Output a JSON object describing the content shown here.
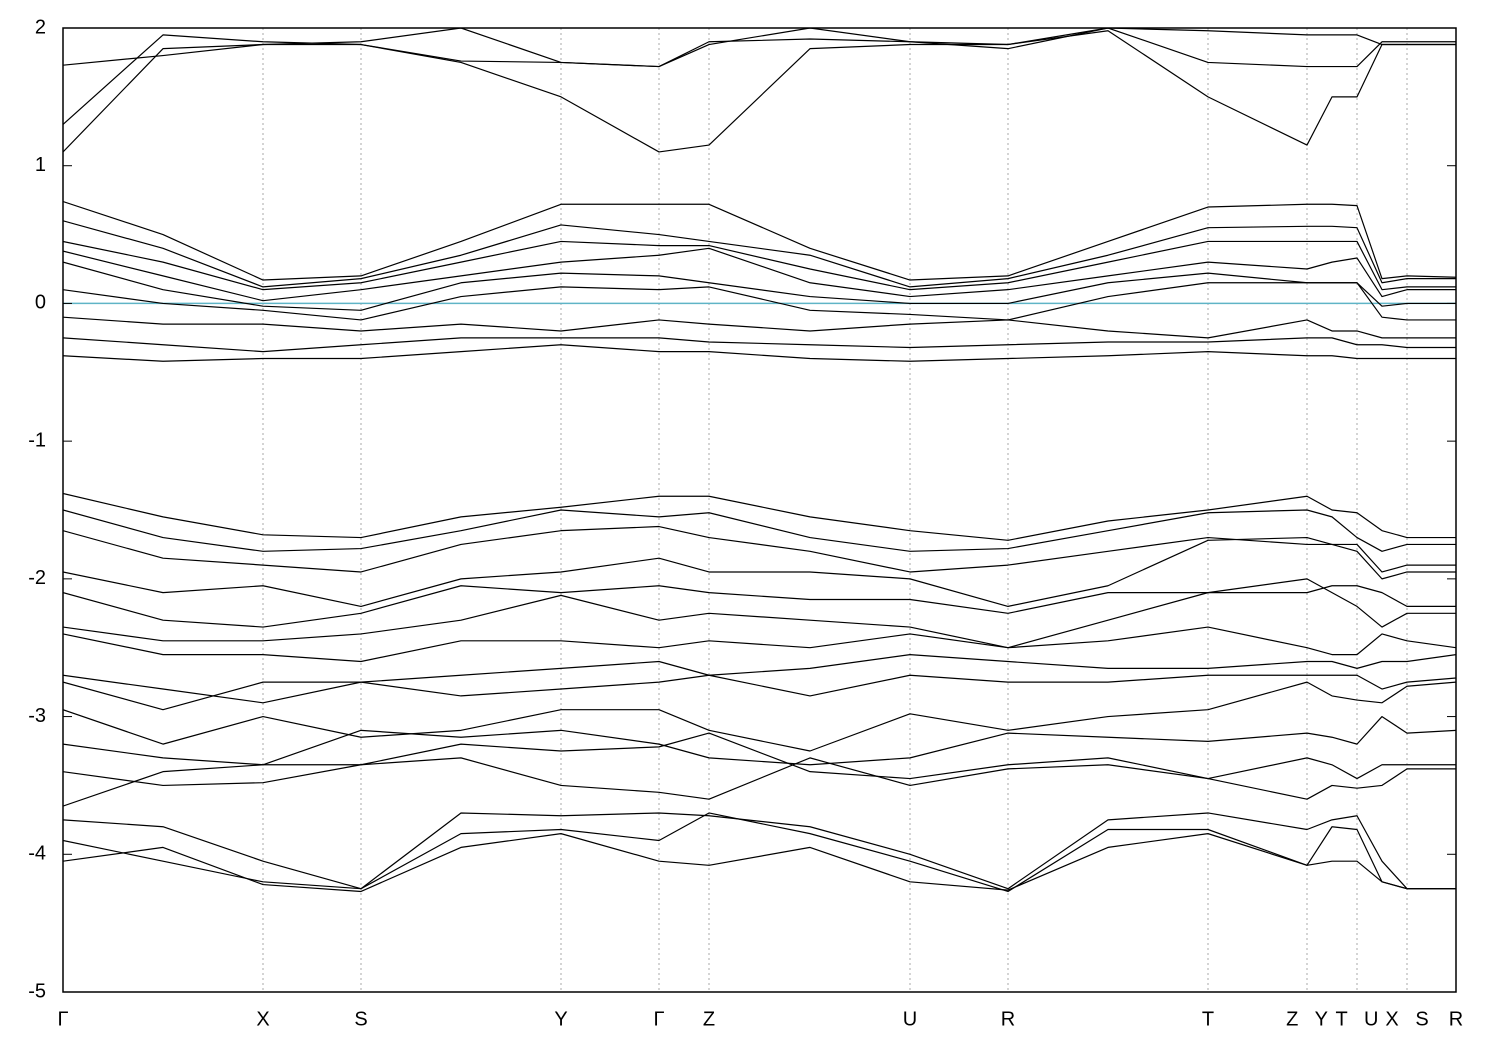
{
  "chart_data": {
    "type": "line",
    "x": [
      0,
      1.0,
      2.0,
      2.98,
      3.98,
      4.98,
      5.96,
      6.46,
      7.47,
      8.47,
      9.45,
      10.45,
      11.45,
      12.44,
      12.69,
      12.94,
      13.19,
      13.44,
      13.93
    ],
    "xlim": [
      0,
      13.93
    ],
    "xticks": [
      {
        "value": 0,
        "label": "Γ"
      },
      {
        "value": 2.0,
        "label": "X"
      },
      {
        "value": 2.98,
        "label": "S"
      },
      {
        "value": 4.98,
        "label": "Y"
      },
      {
        "value": 5.96,
        "label": "Γ"
      },
      {
        "value": 6.46,
        "label": "Z"
      },
      {
        "value": 8.47,
        "label": "U"
      },
      {
        "value": 9.45,
        "label": "R"
      },
      {
        "value": 11.45,
        "label": "T"
      },
      {
        "value": 12.44,
        "label": "Z   Y"
      },
      {
        "value": 12.94,
        "label": "T   U"
      },
      {
        "value": 13.44,
        "label": "X   S"
      },
      {
        "value": 13.93,
        "label": "R"
      }
    ],
    "ylim": [
      -5,
      2
    ],
    "yticks": [
      -5,
      -4,
      -3,
      -2,
      -1,
      0,
      1,
      2
    ],
    "grid": "x",
    "reference_line": {
      "value": 0,
      "color": "#5fb4c6"
    },
    "series": [
      {
        "color": "#000000",
        "values": [
          1.1,
          1.85,
          1.88,
          1.88,
          1.75,
          1.5,
          1.1,
          1.15,
          1.85,
          1.88,
          1.88,
          1.98,
          1.5,
          1.15,
          1.5,
          1.5,
          1.88,
          1.88,
          1.88
        ]
      },
      {
        "color": "#000000",
        "values": [
          1.3,
          1.95,
          1.9,
          1.88,
          1.76,
          1.75,
          1.72,
          1.88,
          2.0,
          1.9,
          1.85,
          2.0,
          1.75,
          1.72,
          1.72,
          1.72,
          1.9,
          1.9,
          1.9
        ]
      },
      {
        "color": "#000000",
        "values": [
          1.73,
          1.8,
          1.88,
          1.9,
          2.0,
          1.75,
          1.72,
          1.9,
          1.92,
          1.9,
          1.88,
          2.0,
          1.98,
          1.95,
          1.95,
          1.95,
          1.88,
          1.88,
          1.88
        ]
      },
      {
        "color": "#000000",
        "values": [
          0.74,
          0.5,
          0.17,
          0.2,
          0.45,
          0.72,
          0.72,
          0.72,
          0.4,
          0.17,
          0.2,
          0.45,
          0.7,
          0.72,
          0.72,
          0.71,
          0.18,
          0.2,
          0.19
        ]
      },
      {
        "color": "#000000",
        "values": [
          0.6,
          0.4,
          0.12,
          0.18,
          0.35,
          0.57,
          0.5,
          0.45,
          0.35,
          0.12,
          0.18,
          0.35,
          0.55,
          0.56,
          0.56,
          0.55,
          0.15,
          0.18,
          0.18
        ]
      },
      {
        "color": "#000000",
        "values": [
          0.45,
          0.3,
          0.1,
          0.15,
          0.3,
          0.45,
          0.42,
          0.42,
          0.25,
          0.1,
          0.15,
          0.3,
          0.45,
          0.45,
          0.45,
          0.45,
          0.1,
          0.12,
          0.12
        ]
      },
      {
        "color": "#000000",
        "values": [
          0.38,
          0.2,
          0.02,
          0.1,
          0.2,
          0.3,
          0.35,
          0.4,
          0.15,
          0.05,
          0.1,
          0.2,
          0.3,
          0.25,
          0.3,
          0.33,
          0.05,
          0.1,
          0.1
        ]
      },
      {
        "color": "#000000",
        "values": [
          0.3,
          0.1,
          -0.02,
          -0.05,
          0.15,
          0.22,
          0.2,
          0.15,
          0.05,
          0.0,
          0.0,
          0.15,
          0.22,
          0.15,
          0.15,
          0.15,
          -0.02,
          0.0,
          0.0
        ]
      },
      {
        "color": "#000000",
        "values": [
          0.1,
          0.0,
          -0.05,
          -0.12,
          0.05,
          0.12,
          0.1,
          0.12,
          -0.05,
          -0.08,
          -0.12,
          0.05,
          0.15,
          0.15,
          0.15,
          0.15,
          -0.1,
          -0.12,
          -0.12
        ]
      },
      {
        "color": "#000000",
        "values": [
          -0.1,
          -0.15,
          -0.15,
          -0.2,
          -0.15,
          -0.2,
          -0.12,
          -0.15,
          -0.2,
          -0.15,
          -0.12,
          -0.2,
          -0.25,
          -0.12,
          -0.2,
          -0.2,
          -0.25,
          -0.25,
          -0.25
        ]
      },
      {
        "color": "#000000",
        "values": [
          -0.25,
          -0.3,
          -0.35,
          -0.3,
          -0.25,
          -0.25,
          -0.25,
          -0.28,
          -0.3,
          -0.32,
          -0.3,
          -0.28,
          -0.28,
          -0.25,
          -0.25,
          -0.3,
          -0.3,
          -0.32,
          -0.32
        ]
      },
      {
        "color": "#000000",
        "values": [
          -0.38,
          -0.42,
          -0.4,
          -0.4,
          -0.35,
          -0.3,
          -0.35,
          -0.35,
          -0.4,
          -0.42,
          -0.4,
          -0.38,
          -0.35,
          -0.38,
          -0.38,
          -0.4,
          -0.4,
          -0.4,
          -0.4
        ]
      },
      {
        "color": "#000000",
        "values": [
          -1.38,
          -1.55,
          -1.68,
          -1.7,
          -1.55,
          -1.48,
          -1.4,
          -1.4,
          -1.55,
          -1.65,
          -1.72,
          -1.58,
          -1.5,
          -1.4,
          -1.5,
          -1.52,
          -1.65,
          -1.7,
          -1.7
        ]
      },
      {
        "color": "#000000",
        "values": [
          -1.5,
          -1.7,
          -1.8,
          -1.78,
          -1.65,
          -1.5,
          -1.55,
          -1.52,
          -1.7,
          -1.8,
          -1.78,
          -1.65,
          -1.52,
          -1.5,
          -1.55,
          -1.7,
          -1.8,
          -1.75,
          -1.75
        ]
      },
      {
        "color": "#000000",
        "values": [
          -1.65,
          -1.85,
          -1.9,
          -1.95,
          -1.75,
          -1.65,
          -1.62,
          -1.7,
          -1.8,
          -1.95,
          -1.9,
          -1.8,
          -1.7,
          -1.75,
          -1.75,
          -1.75,
          -1.95,
          -1.9,
          -1.9
        ]
      },
      {
        "color": "#000000",
        "values": [
          -1.95,
          -2.1,
          -2.05,
          -2.2,
          -2.0,
          -1.95,
          -1.85,
          -1.95,
          -1.95,
          -2.0,
          -2.2,
          -2.05,
          -1.72,
          -1.7,
          -1.75,
          -1.8,
          -2.0,
          -1.95,
          -1.95
        ]
      },
      {
        "color": "#000000",
        "values": [
          -2.1,
          -2.3,
          -2.35,
          -2.25,
          -2.05,
          -2.1,
          -2.05,
          -2.1,
          -2.15,
          -2.15,
          -2.25,
          -2.1,
          -2.1,
          -2.1,
          -2.05,
          -2.05,
          -2.1,
          -2.2,
          -2.2
        ]
      },
      {
        "color": "#000000",
        "values": [
          -2.35,
          -2.45,
          -2.45,
          -2.4,
          -2.3,
          -2.12,
          -2.3,
          -2.25,
          -2.3,
          -2.35,
          -2.5,
          -2.3,
          -2.1,
          -2.0,
          -2.1,
          -2.2,
          -2.35,
          -2.25,
          -2.25
        ]
      },
      {
        "color": "#000000",
        "values": [
          -2.4,
          -2.55,
          -2.55,
          -2.6,
          -2.45,
          -2.45,
          -2.5,
          -2.45,
          -2.5,
          -2.4,
          -2.5,
          -2.45,
          -2.35,
          -2.5,
          -2.55,
          -2.55,
          -2.4,
          -2.45,
          -2.5
        ]
      },
      {
        "color": "#000000",
        "values": [
          -2.7,
          -2.8,
          -2.9,
          -2.75,
          -2.7,
          -2.65,
          -2.6,
          -2.7,
          -2.65,
          -2.55,
          -2.6,
          -2.65,
          -2.65,
          -2.6,
          -2.6,
          -2.65,
          -2.6,
          -2.6,
          -2.55
        ]
      },
      {
        "color": "#000000",
        "values": [
          -2.75,
          -2.95,
          -2.75,
          -2.75,
          -2.85,
          -2.8,
          -2.75,
          -2.7,
          -2.85,
          -2.7,
          -2.75,
          -2.75,
          -2.7,
          -2.7,
          -2.7,
          -2.7,
          -2.8,
          -2.75,
          -2.72
        ]
      },
      {
        "color": "#000000",
        "values": [
          -2.95,
          -3.2,
          -3.0,
          -3.15,
          -3.1,
          -2.95,
          -2.95,
          -3.1,
          -3.25,
          -2.98,
          -3.1,
          -3.0,
          -2.95,
          -2.75,
          -2.85,
          -2.88,
          -2.9,
          -2.78,
          -2.75
        ]
      },
      {
        "color": "#000000",
        "values": [
          -3.2,
          -3.3,
          -3.35,
          -3.1,
          -3.15,
          -3.1,
          -3.2,
          -3.3,
          -3.35,
          -3.3,
          -3.12,
          -3.15,
          -3.18,
          -3.12,
          -3.15,
          -3.2,
          -3.0,
          -3.12,
          -3.1
        ]
      },
      {
        "color": "#000000",
        "values": [
          -3.4,
          -3.5,
          -3.48,
          -3.35,
          -3.2,
          -3.25,
          -3.22,
          -3.12,
          -3.4,
          -3.45,
          -3.35,
          -3.3,
          -3.45,
          -3.3,
          -3.35,
          -3.45,
          -3.35,
          -3.35,
          -3.35
        ]
      },
      {
        "color": "#000000",
        "values": [
          -3.65,
          -3.4,
          -3.35,
          -3.35,
          -3.3,
          -3.5,
          -3.55,
          -3.6,
          -3.3,
          -3.5,
          -3.38,
          -3.35,
          -3.45,
          -3.6,
          -3.5,
          -3.52,
          -3.5,
          -3.38,
          -3.38
        ]
      },
      {
        "color": "#000000",
        "values": [
          -3.75,
          -3.8,
          -4.05,
          -4.25,
          -3.7,
          -3.72,
          -3.7,
          -3.72,
          -3.8,
          -4.0,
          -4.25,
          -3.75,
          -3.7,
          -3.82,
          -3.75,
          -3.72,
          -4.05,
          -4.25,
          -4.25
        ]
      },
      {
        "color": "#000000",
        "values": [
          -3.9,
          -4.05,
          -4.2,
          -4.25,
          -3.85,
          -3.82,
          -3.9,
          -3.7,
          -3.85,
          -4.05,
          -4.27,
          -3.82,
          -3.82,
          -4.08,
          -3.8,
          -3.82,
          -4.2,
          -4.25,
          -4.25
        ]
      },
      {
        "color": "#000000",
        "values": [
          -4.05,
          -3.95,
          -4.22,
          -4.27,
          -3.95,
          -3.85,
          -4.05,
          -4.08,
          -3.95,
          -4.2,
          -4.26,
          -3.95,
          -3.85,
          -4.08,
          -4.05,
          -4.05,
          -4.2,
          -4.25,
          -4.25
        ]
      }
    ]
  }
}
